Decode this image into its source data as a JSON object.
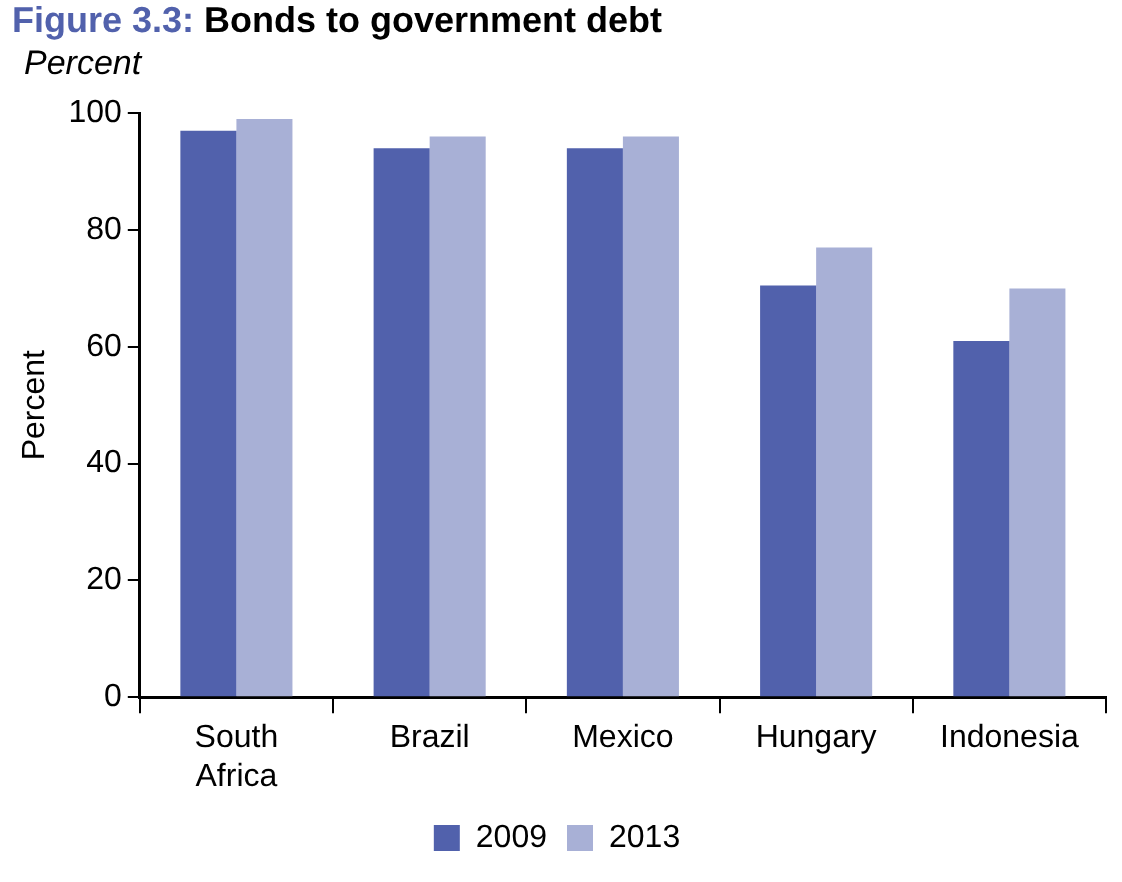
{
  "chart_data": {
    "type": "bar",
    "title": "Figure 3.3: Bonds to government debt",
    "subtitle": "Percent",
    "ylabel": "Percent",
    "categories": [
      "South Africa",
      "Brazil",
      "Mexico",
      "Hungary",
      "Indonesia"
    ],
    "series": [
      {
        "name": "2009",
        "color": "#5161ac",
        "values": [
          97,
          94,
          94,
          70.5,
          61
        ]
      },
      {
        "name": "2013",
        "color": "#a8b0d6",
        "values": [
          99,
          96,
          96,
          77,
          70
        ]
      }
    ],
    "ylim": [
      0,
      100
    ],
    "yticks": [
      0,
      20,
      40,
      60,
      80,
      100
    ],
    "grid": false,
    "legend": "bottom"
  }
}
